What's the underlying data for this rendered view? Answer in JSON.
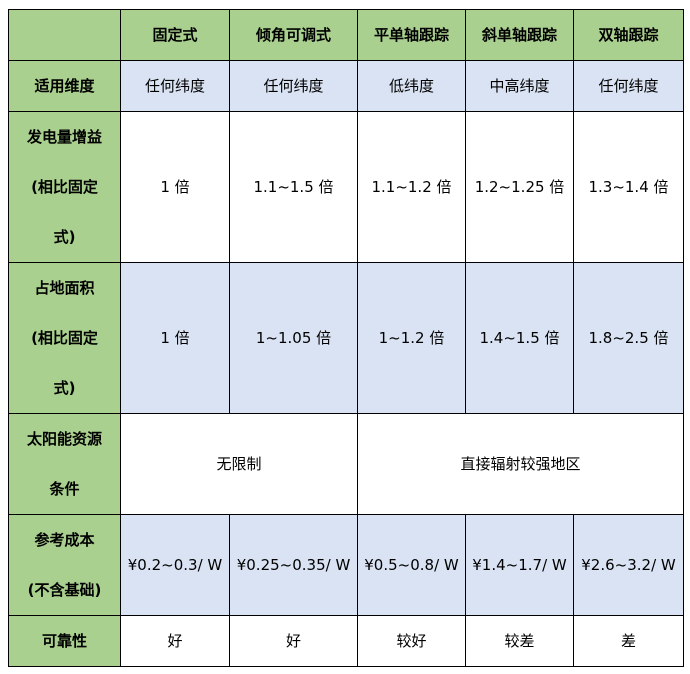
{
  "header": [
    "",
    "固定式",
    "倾角可调式",
    "平单轴跟踪",
    "斜单轴跟踪",
    "双轴跟踪"
  ],
  "rows": [
    {
      "label": [
        "适用维度"
      ],
      "cells": [
        "任何纬度",
        "任何纬度",
        "低纬度",
        "中高纬度",
        "任何纬度"
      ],
      "bg": "b"
    },
    {
      "label": [
        "发电量增益",
        "(相比固定",
        "式)"
      ],
      "cells": [
        "1 倍",
        "1.1~1.5 倍",
        "1.1~1.2 倍",
        "1.2~1.25 倍",
        "1.3~1.4 倍"
      ],
      "bg": "w"
    },
    {
      "label": [
        "占地面积",
        "(相比固定",
        "式)"
      ],
      "cells": [
        "1 倍",
        "1~1.05 倍",
        "1~1.2 倍",
        "1.4~1.5 倍",
        "1.8~2.5 倍"
      ],
      "bg": "b"
    },
    {
      "label": [
        "太阳能资源",
        "条件"
      ],
      "merged": [
        "无限制",
        "直接辐射较强地区"
      ],
      "bg": "w"
    },
    {
      "label": [
        "参考成本",
        "(不含基础)"
      ],
      "cells": [
        "¥0.2~0.3/ W",
        "¥0.25~0.35/ W",
        "¥0.5~0.8/ W",
        "¥1.4~1.7/ W",
        "¥2.6~3.2/ W"
      ],
      "bg": "b"
    },
    {
      "label": [
        "可靠性"
      ],
      "cells": [
        "好",
        "好",
        "较好",
        "较差",
        "差"
      ],
      "bg": "w"
    }
  ],
  "colors": {
    "header_green": "#a9d08e",
    "row_blue": "#dae3f3"
  }
}
